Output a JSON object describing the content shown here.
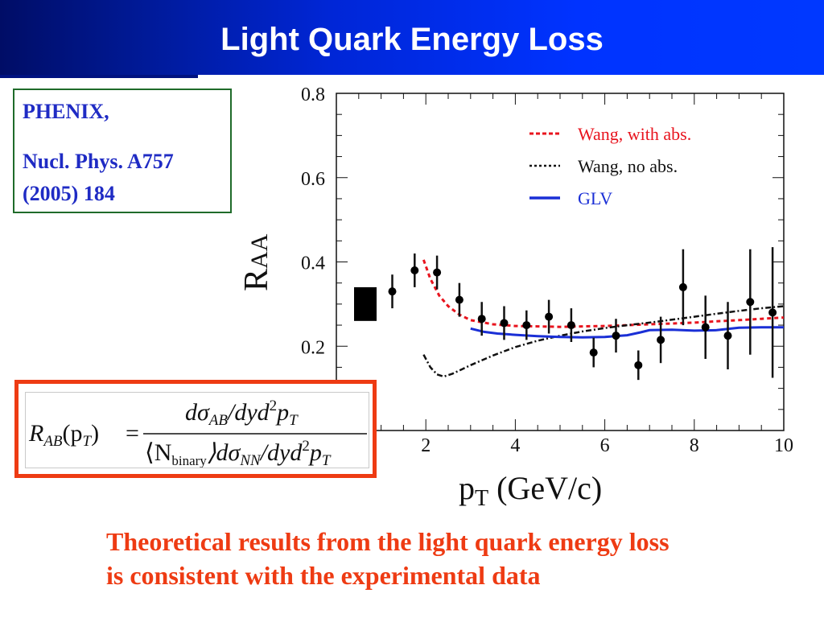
{
  "slide": {
    "title": "Light Quark Energy Loss",
    "reference": {
      "line1": "PHENIX,",
      "line2": "Nucl. Phys. A757",
      "line3": "(2005) 184"
    },
    "conclusion": {
      "line1": "Theoretical results from the light quark energy loss",
      "line2": "is consistent with the experimental data"
    }
  },
  "formula": {
    "lhs": "R",
    "lhs_sub": "AB",
    "lhs_arg": "(p",
    "lhs_arg_sub": "T",
    "lhs_arg_close": ")",
    "equals": "=",
    "num_a": "dσ",
    "num_a_sub": "AB",
    "num_b": "/dyd",
    "num_b_sup": "2",
    "num_c": "p",
    "num_c_sub": "T",
    "den_a": "⟨N",
    "den_a_sub": "binary",
    "den_b": "⟩dσ",
    "den_b_sub": "NN",
    "den_c": "/dyd",
    "den_c_sup": "2",
    "den_d": "p",
    "den_d_sub": "T"
  },
  "colors": {
    "banner": "#0033ff",
    "title_text": "#ffffff",
    "reference_text": "#1f2bc4",
    "reference_border": "#1f6b2a",
    "formula_border": "#ee3b13",
    "conclusion_text": "#ee3b13"
  },
  "chart_data": {
    "type": "line",
    "title": "",
    "xlabel": "p",
    "xlabel_sub": "T",
    "xlabel_unit": " (GeV/c)",
    "ylabel": "R",
    "ylabel_sub": "AA",
    "xlim": [
      0,
      10
    ],
    "ylim": [
      0,
      0.8
    ],
    "xticks": [
      2,
      4,
      6,
      8,
      10
    ],
    "xtick_labels": [
      "2",
      "4",
      "6",
      "8",
      "10"
    ],
    "yticks": [
      0.2,
      0.4,
      0.6,
      0.8
    ],
    "ytick_labels": [
      "0.2",
      "0.4",
      "0.6",
      "0.8"
    ],
    "grid": false,
    "legend_position": "top-right",
    "data_points": [
      {
        "x": 1.25,
        "y": 0.33,
        "err": 0.04
      },
      {
        "x": 1.75,
        "y": 0.38,
        "err": 0.04
      },
      {
        "x": 2.25,
        "y": 0.375,
        "err": 0.04
      },
      {
        "x": 2.75,
        "y": 0.31,
        "err": 0.04
      },
      {
        "x": 3.25,
        "y": 0.265,
        "err": 0.04
      },
      {
        "x": 3.75,
        "y": 0.255,
        "err": 0.04
      },
      {
        "x": 4.25,
        "y": 0.25,
        "err": 0.035
      },
      {
        "x": 4.75,
        "y": 0.27,
        "err": 0.04
      },
      {
        "x": 5.25,
        "y": 0.25,
        "err": 0.04
      },
      {
        "x": 5.75,
        "y": 0.185,
        "err": 0.035
      },
      {
        "x": 6.25,
        "y": 0.225,
        "err": 0.04
      },
      {
        "x": 6.75,
        "y": 0.155,
        "err": 0.035
      },
      {
        "x": 7.25,
        "y": 0.215,
        "err": 0.055
      },
      {
        "x": 7.75,
        "y": 0.34,
        "err": 0.09
      },
      {
        "x": 8.25,
        "y": 0.245,
        "err": 0.075
      },
      {
        "x": 8.75,
        "y": 0.225,
        "err": 0.08
      },
      {
        "x": 9.25,
        "y": 0.305,
        "err": 0.125
      },
      {
        "x": 9.75,
        "y": 0.28,
        "err": 0.155
      }
    ],
    "systematic_box": {
      "y_low": 0.26,
      "y_high": 0.34
    },
    "series": [
      {
        "name": "Wang, with abs.",
        "color": "#e8141e",
        "style": "dashed",
        "x": [
          1.95,
          2.1,
          2.3,
          2.5,
          2.75,
          3.0,
          3.5,
          4.0,
          4.5,
          5.0,
          5.5,
          6.0,
          6.5,
          7.0,
          7.5,
          8.0,
          8.5,
          9.0,
          9.5,
          10.0
        ],
        "y": [
          0.405,
          0.36,
          0.32,
          0.295,
          0.275,
          0.262,
          0.252,
          0.248,
          0.247,
          0.246,
          0.247,
          0.248,
          0.25,
          0.252,
          0.254,
          0.256,
          0.259,
          0.262,
          0.265,
          0.268
        ]
      },
      {
        "name": "Wang, no abs.",
        "color": "#111111",
        "style": "dashdot",
        "x": [
          1.95,
          2.1,
          2.25,
          2.4,
          2.6,
          2.8,
          3.0,
          3.5,
          4.0,
          4.5,
          5.0,
          5.5,
          6.0,
          6.5,
          7.0,
          7.5,
          8.0,
          8.5,
          9.0,
          9.5,
          10.0
        ],
        "y": [
          0.18,
          0.15,
          0.133,
          0.128,
          0.135,
          0.145,
          0.155,
          0.178,
          0.198,
          0.213,
          0.225,
          0.235,
          0.243,
          0.25,
          0.256,
          0.263,
          0.27,
          0.277,
          0.284,
          0.29,
          0.295
        ]
      },
      {
        "name": "GLV",
        "color": "#1a2fd6",
        "style": "solid",
        "x": [
          3.0,
          3.3,
          3.6,
          4.0,
          4.5,
          5.0,
          5.5,
          6.0,
          6.5,
          6.8,
          7.0,
          7.5,
          8.0,
          8.5,
          9.0,
          9.5,
          10.0
        ],
        "y": [
          0.242,
          0.234,
          0.23,
          0.227,
          0.224,
          0.222,
          0.221,
          0.222,
          0.226,
          0.233,
          0.238,
          0.239,
          0.237,
          0.238,
          0.244,
          0.245,
          0.245
        ]
      }
    ]
  }
}
